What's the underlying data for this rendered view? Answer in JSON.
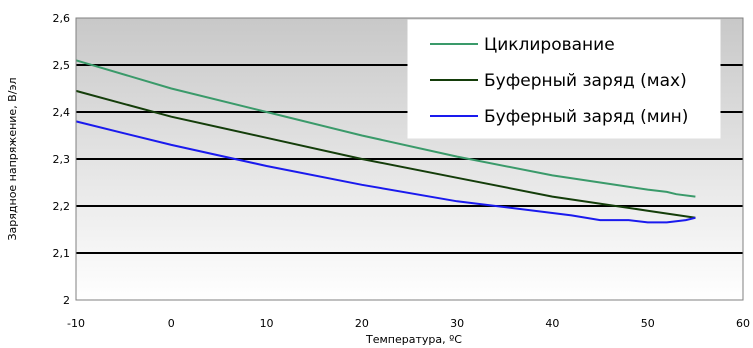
{
  "chart_data": {
    "type": "line",
    "title": "",
    "xlabel": "Температура, ºС",
    "ylabel": "Зарядное напряжение, В/эл",
    "xlim": [
      -10,
      60
    ],
    "ylim": [
      2,
      2.6
    ],
    "x_ticks": [
      "-10",
      "0",
      "10",
      "20",
      "30",
      "40",
      "50",
      "60"
    ],
    "y_ticks": [
      "2",
      "2,1",
      "2,2",
      "2,3",
      "2,4",
      "2,5",
      "2,6"
    ],
    "grid": "horizontal",
    "legend_position": "top-right",
    "series": [
      {
        "name": "Циклирование",
        "color": "#3a9a6a",
        "x": [
          -10,
          0,
          10,
          20,
          30,
          40,
          45,
          50,
          52,
          53,
          55
        ],
        "y": [
          2.51,
          2.45,
          2.4,
          2.35,
          2.305,
          2.265,
          2.25,
          2.235,
          2.23,
          2.225,
          2.22
        ]
      },
      {
        "name": "Буферный заряд (мах)",
        "color": "#143d0a",
        "x": [
          -10,
          0,
          10,
          20,
          30,
          40,
          50,
          55
        ],
        "y": [
          2.445,
          2.39,
          2.345,
          2.3,
          2.26,
          2.22,
          2.19,
          2.175
        ]
      },
      {
        "name": "Буферный заряд (мин)",
        "color": "#1a1aee",
        "x": [
          -10,
          0,
          10,
          20,
          30,
          40,
          42,
          45,
          48,
          50,
          52,
          54,
          55
        ],
        "y": [
          2.38,
          2.33,
          2.285,
          2.245,
          2.21,
          2.185,
          2.18,
          2.17,
          2.17,
          2.165,
          2.165,
          2.17,
          2.175
        ]
      }
    ]
  }
}
